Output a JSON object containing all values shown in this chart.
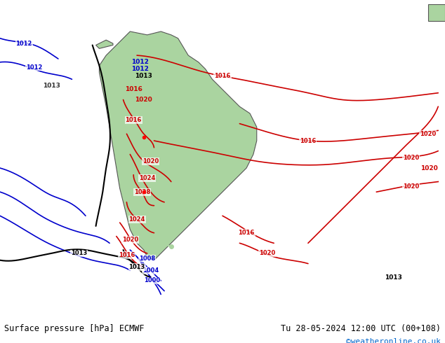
{
  "title_left": "Surface pressure [hPa] ECMWF",
  "title_right": "Tu 28-05-2024 12:00 UTC (00+108)",
  "credit": "©weatheronline.co.uk",
  "background_color": "#d8e8f0",
  "land_color": "#aad4a0",
  "figsize": [
    6.34,
    4.9
  ],
  "dpi": 100,
  "text_color_black": "#000000",
  "text_color_blue": "#0000cc",
  "text_color_red": "#cc0000",
  "text_color_cyan": "#00aacc",
  "isobar_colors": {
    "low": "#0000cc",
    "mid_black": "#000000",
    "high": "#cc0000"
  }
}
